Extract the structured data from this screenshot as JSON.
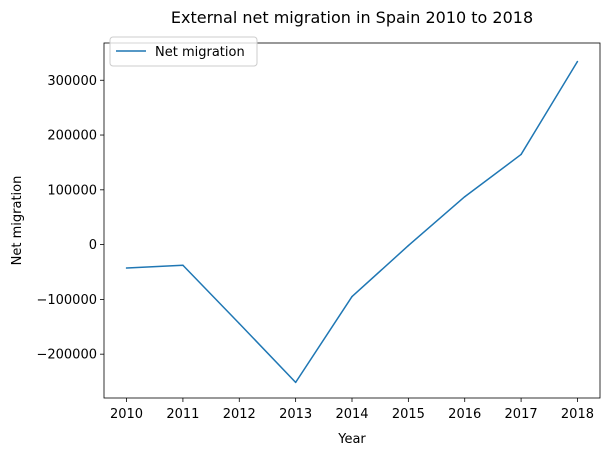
{
  "chart_data": {
    "type": "line",
    "title": "External net migration in Spain 2010 to 2018",
    "xlabel": "Year",
    "ylabel": "Net migration",
    "x": [
      2010,
      2011,
      2012,
      2013,
      2014,
      2015,
      2016,
      2017,
      2018
    ],
    "x_tick_labels": [
      "2010",
      "2011",
      "2012",
      "2013",
      "2014",
      "2015",
      "2016",
      "2017",
      "2018"
    ],
    "y_ticks": [
      -200000,
      -100000,
      0,
      100000,
      200000,
      300000
    ],
    "y_tick_labels": [
      "−200000",
      "−100000",
      "0",
      "100000",
      "200000",
      "300000"
    ],
    "xlim": [
      2009.6,
      2018.4
    ],
    "ylim": [
      -280000,
      368000
    ],
    "grid": false,
    "legend_position": "upper-left",
    "series": [
      {
        "name": "Net migration",
        "color": "#1f77b4",
        "values": [
          -42700,
          -37700,
          -144000,
          -251500,
          -94900,
          -1800,
          87400,
          164600,
          334200
        ]
      }
    ]
  }
}
